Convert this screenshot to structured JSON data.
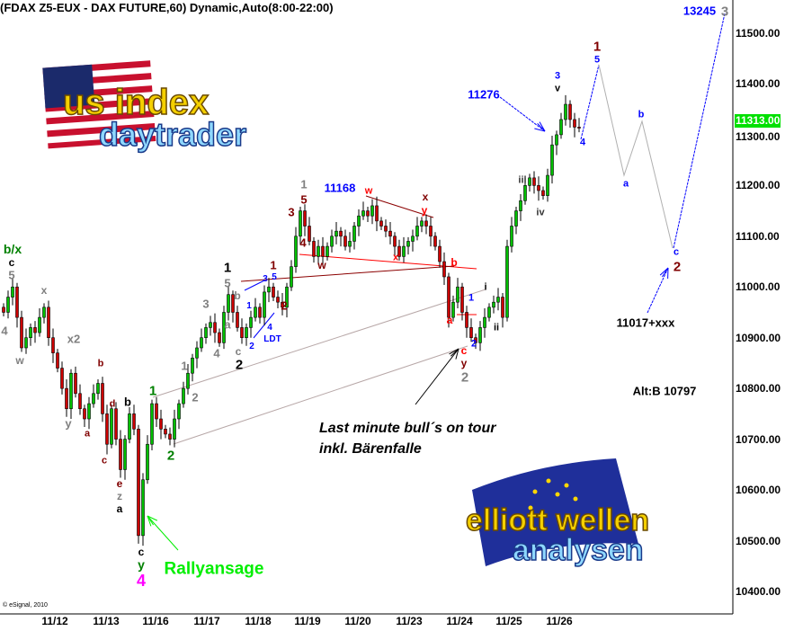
{
  "title": "(FDAX Z5-EUX - DAX FUTURE,60) Dynamic,Auto(8:00-22:00)",
  "copyright": "© eSignal, 2010",
  "logos": {
    "top": [
      "us index",
      "daytrader"
    ],
    "bottom": [
      "elliott wellen",
      "analysen"
    ]
  },
  "notes": [
    "Last minute bull´s on tour",
    "inkl. Bärenfalle"
  ],
  "chart_data": {
    "type": "candlestick",
    "title": "(FDAX Z5-EUX - DAX FUTURE,60) Dynamic,Auto(8:00-22:00)",
    "x_tick_labels": [
      "11/12",
      "11/13",
      "11/16",
      "11/17",
      "11/18",
      "11/19",
      "11/20",
      "11/23",
      "11/24",
      "11/25",
      "11/26"
    ],
    "y_tick_labels": [
      "11500.00",
      "11400.00",
      "11300.00",
      "11200.00",
      "11100.00",
      "11000.00",
      "10900.00",
      "10800.00",
      "10700.00",
      "10600.00",
      "10500.00",
      "10400.00"
    ],
    "ylim": [
      10360,
      11580
    ],
    "last_price": "11313.00",
    "last_price_color": "#00e000",
    "up_color": "#00c000",
    "down_color": "#cc0000",
    "grid": false,
    "closes": [
      10950,
      10980,
      11000,
      10940,
      10880,
      10900,
      10920,
      10910,
      10940,
      10960,
      10900,
      10870,
      10840,
      10800,
      10760,
      10830,
      10790,
      10760,
      10740,
      10770,
      10790,
      10810,
      10750,
      10690,
      10760,
      10700,
      10640,
      10700,
      10750,
      10720,
      10510,
      10620,
      10690,
      10770,
      10740,
      10720,
      10710,
      10700,
      10740,
      10770,
      10800,
      10830,
      10860,
      10880,
      10900,
      10920,
      10930,
      10910,
      10890,
      10950,
      10985,
      10950,
      10920,
      10900,
      10920,
      10940,
      10960,
      10940,
      10990,
      11000,
      10980,
      10970,
      10960,
      11000,
      11040,
      11100,
      11150,
      11120,
      11090,
      11060,
      11080,
      11060,
      11080,
      11100,
      11110,
      11100,
      11080,
      11090,
      11120,
      11140,
      11150,
      11140,
      11160,
      11130,
      11120,
      11110,
      11100,
      11080,
      11060,
      11080,
      11090,
      11100,
      11120,
      11130,
      11120,
      11100,
      11080,
      11050,
      11020,
      10940,
      10970,
      11000,
      10950,
      10920,
      10900,
      10890,
      10920,
      10940,
      10960,
      10970,
      10980,
      10940,
      11080,
      11120,
      11150,
      11170,
      11200,
      11215,
      11200,
      11190,
      11180,
      11220,
      11280,
      11300,
      11330,
      11360,
      11330,
      11315,
      11313
    ],
    "projection": {
      "wave_5_target": "13245",
      "levels": [
        "11276",
        "11168",
        "11017+xxx",
        "Alt:B 10797"
      ]
    },
    "labels": [
      {
        "t": "b/x",
        "c": "#008000"
      },
      {
        "t": "c",
        "c": "#000000"
      },
      {
        "t": "5",
        "c": "#808080"
      },
      {
        "t": "4",
        "c": "#808080"
      },
      {
        "t": "w",
        "c": "#808080"
      },
      {
        "t": "x",
        "c": "#808080"
      },
      {
        "t": "x2",
        "c": "#808080"
      },
      {
        "t": "y",
        "c": "#808080"
      },
      {
        "t": "a",
        "c": "#800000"
      },
      {
        "t": "b",
        "c": "#800000"
      },
      {
        "t": "c",
        "c": "#800000"
      },
      {
        "t": "d",
        "c": "#800000"
      },
      {
        "t": "b",
        "c": "#000000"
      },
      {
        "t": "e",
        "c": "#800000"
      },
      {
        "t": "z",
        "c": "#808080"
      },
      {
        "t": "a",
        "c": "#000000"
      },
      {
        "t": "c",
        "c": "#000000"
      },
      {
        "t": "y",
        "c": "#008000"
      },
      {
        "t": "4",
        "c": "#ff00ff"
      },
      {
        "t": "Rallyansage",
        "c": "#00ee00"
      },
      {
        "t": "1",
        "c": "#008000"
      },
      {
        "t": "2",
        "c": "#008000"
      },
      {
        "t": "1",
        "c": "#808080"
      },
      {
        "t": "2",
        "c": "#808080"
      },
      {
        "t": "3",
        "c": "#808080"
      },
      {
        "t": "4",
        "c": "#808080"
      },
      {
        "t": "5",
        "c": "#808080"
      },
      {
        "t": "1",
        "c": "#000000"
      },
      {
        "t": "b",
        "c": "#808080"
      },
      {
        "t": "a",
        "c": "#808080"
      },
      {
        "t": "c",
        "c": "#808080"
      },
      {
        "t": "2",
        "c": "#000000"
      },
      {
        "t": "1",
        "c": "#0000ff"
      },
      {
        "t": "3",
        "c": "#0000ff"
      },
      {
        "t": "5",
        "c": "#0000ff"
      },
      {
        "t": "2",
        "c": "#0000ff"
      },
      {
        "t": "4",
        "c": "#0000ff"
      },
      {
        "t": "LDT",
        "c": "#0000ff"
      },
      {
        "t": "1",
        "c": "#800000"
      },
      {
        "t": "2",
        "c": "#800000"
      },
      {
        "t": "3",
        "c": "#800000"
      },
      {
        "t": "5",
        "c": "#800000"
      },
      {
        "t": "1",
        "c": "#808080"
      },
      {
        "t": "4",
        "c": "#800000"
      },
      {
        "t": "w",
        "c": "#800000"
      },
      {
        "t": "11168",
        "c": "#0000ff"
      },
      {
        "t": "w",
        "c": "#ff0000"
      },
      {
        "t": "x",
        "c": "#ff0000"
      },
      {
        "t": "x",
        "c": "#800000"
      },
      {
        "t": "y",
        "c": "#ff0000"
      },
      {
        "t": "b",
        "c": "#ff0000"
      },
      {
        "t": "a",
        "c": "#ff0000"
      },
      {
        "t": "c",
        "c": "#ff0000"
      },
      {
        "t": "y",
        "c": "#800000"
      },
      {
        "t": "2",
        "c": "#808080"
      },
      {
        "t": "1",
        "c": "#0000ff"
      },
      {
        "t": "2",
        "c": "#0000ff"
      },
      {
        "t": "i",
        "c": "#000000"
      },
      {
        "t": "ii",
        "c": "#000000"
      },
      {
        "t": "iii",
        "c": "#333333"
      },
      {
        "t": "iv",
        "c": "#333333"
      },
      {
        "t": "3",
        "c": "#0000ff"
      },
      {
        "t": "v",
        "c": "#000000"
      },
      {
        "t": "11276",
        "c": "#0000ff"
      },
      {
        "t": "1",
        "c": "#800000"
      },
      {
        "t": "5",
        "c": "#0000ff"
      },
      {
        "t": "4",
        "c": "#0000ff"
      },
      {
        "t": "a",
        "c": "#0000ff"
      },
      {
        "t": "b",
        "c": "#0000ff"
      },
      {
        "t": "c",
        "c": "#0000ff"
      },
      {
        "t": "2",
        "c": "#800000"
      },
      {
        "t": "13245",
        "c": "#0000ff"
      },
      {
        "t": "3",
        "c": "#808080"
      },
      {
        "t": "11017+xxx",
        "c": "#000000"
      },
      {
        "t": "Alt:B 10797",
        "c": "#000000"
      }
    ]
  }
}
